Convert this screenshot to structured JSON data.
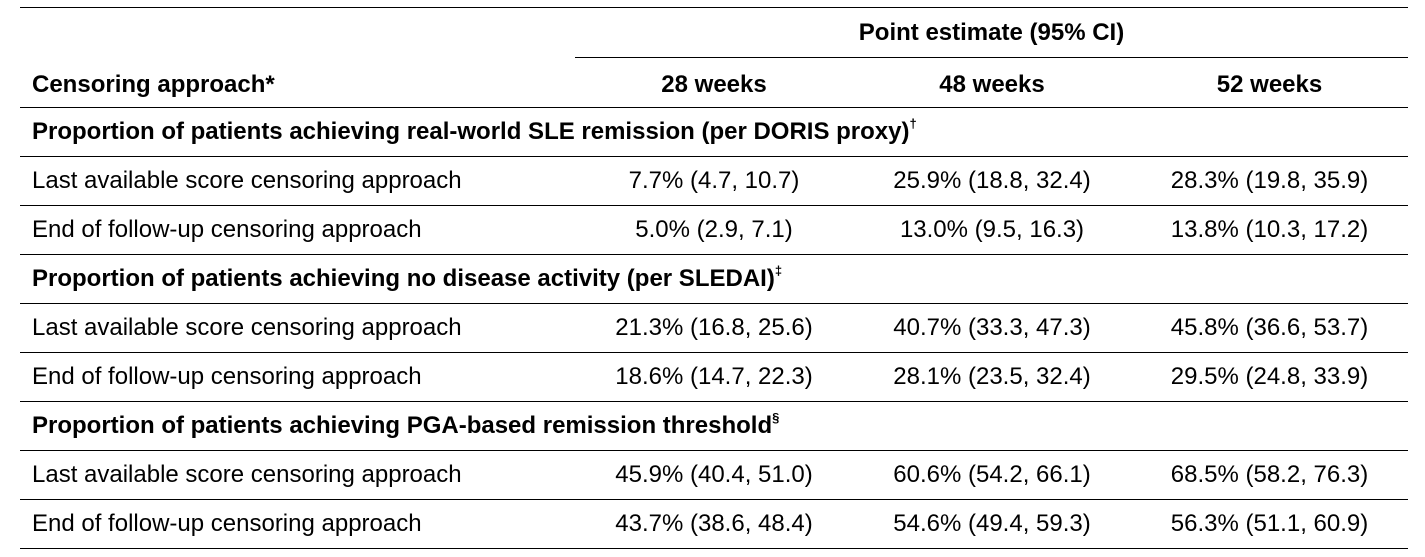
{
  "header": {
    "group_label": "Point estimate (95% CI)",
    "row_label": "Censoring approach*",
    "columns": [
      "28 weeks",
      "48 weeks",
      "52 weeks"
    ]
  },
  "sections": [
    {
      "title": "Proportion of patients achieving real-world SLE remission (per DORIS proxy)",
      "mark": "†",
      "rows": [
        {
          "label": "Last available score censoring approach",
          "values": [
            "7.7% (4.7, 10.7)",
            "25.9% (18.8, 32.4)",
            "28.3% (19.8, 35.9)"
          ]
        },
        {
          "label": "End of follow-up censoring approach",
          "values": [
            "5.0% (2.9, 7.1)",
            "13.0% (9.5, 16.3)",
            "13.8% (10.3, 17.2)"
          ]
        }
      ]
    },
    {
      "title": "Proportion of patients achieving no disease activity (per SLEDAI)",
      "mark": "‡",
      "rows": [
        {
          "label": "Last available score censoring approach",
          "values": [
            "21.3% (16.8, 25.6)",
            "40.7% (33.3, 47.3)",
            "45.8% (36.6, 53.7)"
          ]
        },
        {
          "label": "End of follow-up censoring approach",
          "values": [
            "18.6% (14.7, 22.3)",
            "28.1% (23.5, 32.4)",
            "29.5% (24.8, 33.9)"
          ]
        }
      ]
    },
    {
      "title": "Proportion of patients achieving PGA-based remission threshold",
      "mark": "§",
      "rows": [
        {
          "label": "Last available score censoring approach",
          "values": [
            "45.9% (40.4, 51.0)",
            "60.6% (54.2, 66.1)",
            "68.5% (58.2, 76.3)"
          ]
        },
        {
          "label": "End of follow-up censoring approach",
          "values": [
            "43.7% (38.6, 48.4)",
            "54.6% (49.4, 59.3)",
            "56.3% (51.1, 60.9)"
          ]
        }
      ]
    }
  ]
}
